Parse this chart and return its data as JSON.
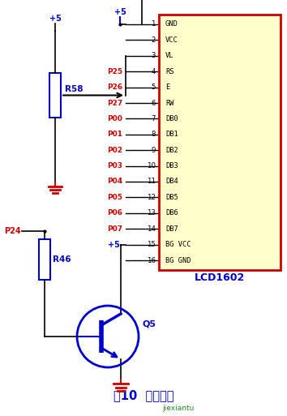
{
  "bg_color": "#ffffff",
  "title": "图10  显示电路",
  "title_color": "#0000cc",
  "watermark": "jiexiantu",
  "watermark_color": "#008800",
  "lcd_pins_right": [
    "GND",
    "VCC",
    "VL",
    "RS",
    "E",
    "RW",
    "DB0",
    "DB1",
    "DB2",
    "DB3",
    "DB4",
    "DB5",
    "DB6",
    "DB7",
    "BG VCC",
    "BG GND"
  ],
  "port_labels": [
    "",
    "",
    "",
    "P25",
    "P26",
    "P27",
    "P00",
    "P01",
    "P02",
    "P03",
    "P04",
    "P05",
    "P06",
    "P07",
    "",
    ""
  ],
  "blue_color": "#0000cc",
  "red_color": "#cc0000",
  "black_color": "#000000"
}
